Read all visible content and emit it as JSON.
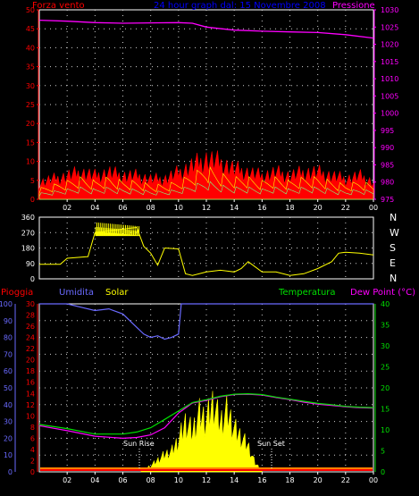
{
  "header": {
    "wind_label": "Forza vento",
    "title": "24 hour graph dal: 15 Novembre 2008",
    "pressure_label": "Pressione"
  },
  "bottom_header": {
    "rain_label": "Pioggia",
    "humidity_label": "Umidita",
    "solar_label": "Solar",
    "temperature_label": "Temperatura",
    "dewpoint_label": "Dew Point (°C)"
  },
  "annotations": {
    "sunrise": "Sun Rise",
    "sunset": "Sun Set"
  },
  "direction_labels": [
    "N",
    "W",
    "S",
    "E",
    "N"
  ],
  "colors": {
    "wind": "#ff0000",
    "gust": "#ffff00",
    "wind_light": "#80ff80",
    "pressure": "#ff00ff",
    "title": "#0000ff",
    "direction": "#ffff00",
    "humidity": "#6a6aff",
    "temperature": "#00e000",
    "dewpoint": "#ff00ff",
    "solar": "#ffff00",
    "rain": "#ff0000",
    "grid": "#d0d0d0",
    "axis_white": "#ffffff"
  },
  "chart_data": [
    {
      "type": "area",
      "panel": "wind-pressure",
      "x_ticks": [
        "02",
        "04",
        "06",
        "08",
        "10",
        "12",
        "14",
        "16",
        "18",
        "20",
        "22",
        "00"
      ],
      "y_left_ticks": [
        "0",
        "5",
        "10",
        "15",
        "20",
        "25",
        "30",
        "35",
        "40",
        "45",
        "50"
      ],
      "y_left_range": [
        0,
        50
      ],
      "y_right_ticks": [
        "975",
        "980",
        "985",
        "990",
        "995",
        "1000",
        "1005",
        "1010",
        "1015",
        "1020",
        "1025",
        "1030"
      ],
      "y_right_range": [
        975,
        1030
      ],
      "series": [
        {
          "name": "Pressione",
          "x_hours": [
            0,
            2,
            4,
            6,
            8,
            10,
            11,
            12,
            14,
            16,
            18,
            20,
            22,
            24
          ],
          "values": [
            1027,
            1026.7,
            1026.3,
            1026.1,
            1026.2,
            1026.3,
            1026.1,
            1025,
            1024.1,
            1023.8,
            1023.6,
            1023.4,
            1022.8,
            1021.8
          ]
        },
        {
          "name": "Forza vento",
          "x_hours": [
            0,
            1,
            2,
            3,
            4,
            5,
            6,
            7,
            8,
            9,
            10,
            11,
            12,
            13,
            14,
            15,
            16,
            17,
            18,
            19,
            20,
            21,
            22,
            23,
            24
          ],
          "values": [
            3,
            4,
            5,
            6,
            5,
            6,
            5,
            5,
            4,
            4,
            5,
            7,
            9,
            7,
            6,
            6,
            5,
            6,
            5,
            6,
            6,
            5,
            4,
            5,
            4
          ],
          "peak_values": [
            5,
            6,
            7,
            8,
            7,
            8,
            7,
            7,
            6,
            6,
            8,
            10,
            12,
            11,
            9,
            8,
            7,
            8,
            7,
            8,
            8,
            7,
            6,
            7,
            5
          ]
        }
      ]
    },
    {
      "type": "line",
      "panel": "wind-direction",
      "x_ticks": [
        "02",
        "04",
        "06",
        "08",
        "10",
        "12",
        "14",
        "16",
        "18",
        "20",
        "22",
        "00"
      ],
      "y_ticks": [
        "0",
        "90",
        "180",
        "270",
        "360"
      ],
      "y_range": [
        0,
        360
      ],
      "series": [
        {
          "name": "direction",
          "x_hours": [
            0,
            1.5,
            2,
            3.5,
            4,
            5,
            6,
            7,
            7.5,
            8,
            8.5,
            9,
            10,
            10.5,
            11,
            12,
            13,
            14,
            14.5,
            15,
            16,
            17,
            18,
            19,
            20,
            21,
            21.5,
            22,
            23,
            24
          ],
          "values": [
            85,
            85,
            120,
            130,
            270,
            280,
            290,
            300,
            190,
            150,
            80,
            180,
            175,
            30,
            20,
            40,
            50,
            40,
            60,
            100,
            40,
            40,
            20,
            30,
            60,
            100,
            150,
            155,
            150,
            140
          ]
        }
      ]
    },
    {
      "type": "line",
      "panel": "weather",
      "x_ticks": [
        "02",
        "04",
        "06",
        "08",
        "10",
        "12",
        "14",
        "16",
        "18",
        "20",
        "22",
        "00"
      ],
      "y_humidity_ticks": [
        "0",
        "10",
        "20",
        "30",
        "40",
        "50",
        "60",
        "70",
        "80",
        "90",
        "100"
      ],
      "y_rain_ticks": [
        "0",
        "2",
        "4",
        "6",
        "8",
        "10",
        "12",
        "14",
        "16",
        "18",
        "20",
        "22",
        "24",
        "26",
        "28",
        "30"
      ],
      "y_temp_ticks": [
        "0",
        "5",
        "10",
        "15",
        "20",
        "25",
        "30",
        "35",
        "40"
      ],
      "humidity_range": [
        0,
        100
      ],
      "temperature_range": [
        0,
        40
      ],
      "series": [
        {
          "name": "Umidita",
          "x_hours": [
            0,
            2,
            3,
            4,
            5,
            6,
            7,
            7.5,
            8,
            8.5,
            9,
            9.5,
            10,
            10.2,
            11,
            12,
            14,
            16,
            18,
            20,
            22,
            24
          ],
          "values": [
            100,
            100,
            98,
            96,
            97,
            94,
            86,
            82,
            80,
            81,
            79,
            80,
            82,
            100,
            100,
            100,
            100,
            100,
            100,
            100,
            100,
            100
          ]
        },
        {
          "name": "Temperatura",
          "x_hours": [
            0,
            2,
            4,
            6,
            7,
            8,
            9,
            10,
            11,
            12,
            13,
            14,
            15,
            16,
            17,
            18,
            19,
            20,
            21,
            22,
            23,
            24
          ],
          "values": [
            11.3,
            10.3,
            9.0,
            9.0,
            9.5,
            10.5,
            12.5,
            14.5,
            16.5,
            17.2,
            18.0,
            18.5,
            18.6,
            18.4,
            17.8,
            17.3,
            16.8,
            16.3,
            16.0,
            15.6,
            15.4,
            15.3
          ]
        },
        {
          "name": "Dew Point",
          "x_hours": [
            0,
            2,
            4,
            6,
            7,
            8,
            9,
            10,
            11,
            12,
            13,
            14,
            15,
            16,
            17,
            18,
            19,
            20,
            21,
            22,
            23,
            24
          ],
          "values": [
            11.0,
            9.8,
            8.5,
            8.0,
            8.2,
            8.8,
            10.5,
            14.0,
            16.4,
            17.0,
            17.9,
            18.4,
            18.5,
            18.3,
            17.7,
            17.2,
            16.6,
            16.1,
            15.8,
            15.5,
            15.3,
            15.2
          ]
        },
        {
          "name": "Solar",
          "x_hours": [
            7.3,
            8,
            8.5,
            9,
            9.5,
            10,
            10.5,
            11,
            11.5,
            12,
            12.5,
            13,
            13.5,
            14,
            14.5,
            15,
            15.5,
            16
          ],
          "values": [
            1,
            4,
            8,
            12,
            14,
            22,
            34,
            28,
            40,
            36,
            48,
            34,
            42,
            30,
            24,
            18,
            6,
            1
          ]
        },
        {
          "name": "Pioggia",
          "x_hours": [
            0,
            24
          ],
          "values": [
            0,
            0
          ]
        }
      ]
    }
  ]
}
